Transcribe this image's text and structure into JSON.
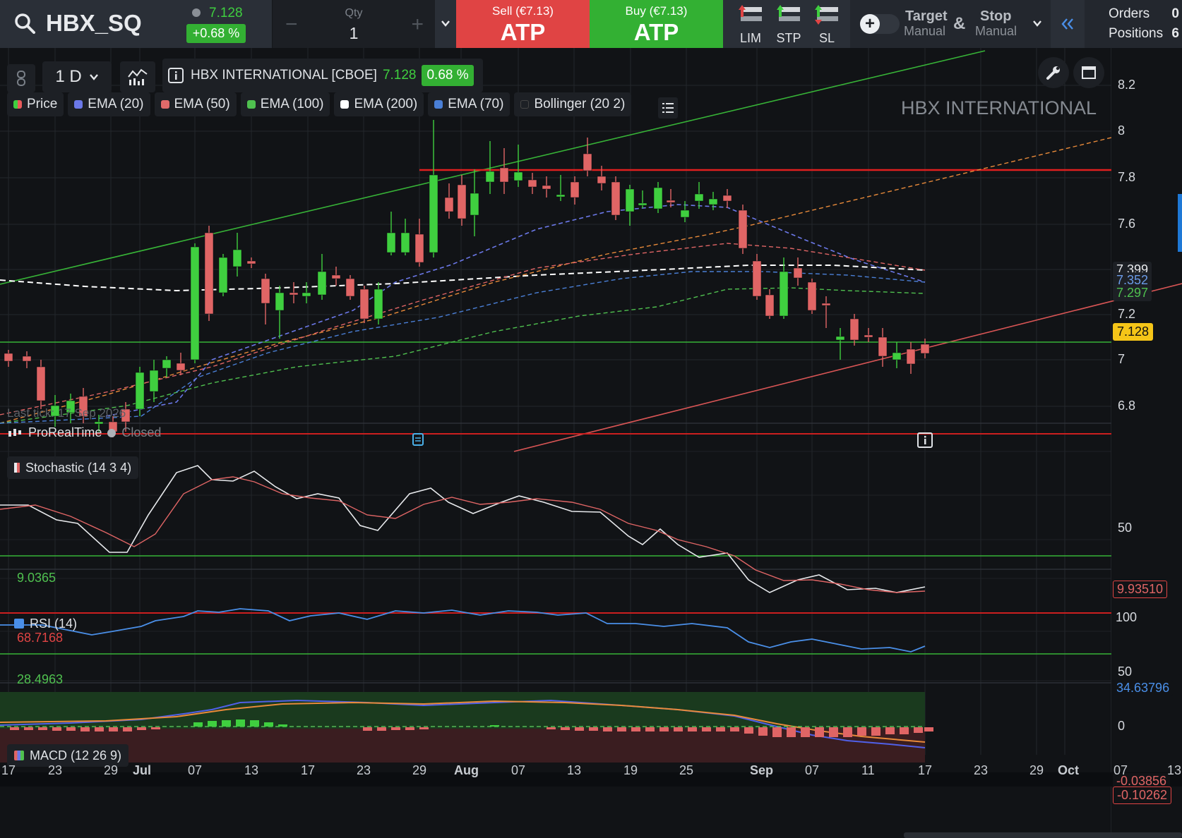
{
  "header": {
    "symbol": "HBX_SQ",
    "price": "7.128",
    "change_pct": "+0.68 %",
    "qty_label": "Qty",
    "qty_value": "1",
    "qty_minus": "−",
    "qty_plus": "+",
    "sell_label": "Sell (€7.13)",
    "sell_main": "ATP",
    "buy_label": "Buy (€7.13)",
    "buy_main": "ATP",
    "order_types": [
      "LIM",
      "STP",
      "SL"
    ],
    "target_label": "Target",
    "target_sub": "Manual",
    "amp": "&",
    "stop_label": "Stop",
    "stop_sub": "Manual",
    "orders_label": "Orders",
    "orders_count": "0",
    "positions_label": "Positions",
    "positions_count": "6"
  },
  "toolbar": {
    "timeframe": "1 D",
    "instrument_name": "HBX INTERNATIONAL [CBOE]",
    "instrument_price": "7.128",
    "instrument_change": "0.68 %"
  },
  "legend": [
    {
      "name": "Price",
      "color": "#e85a5a"
    },
    {
      "name": "EMA (20)",
      "color": "#6b78e8"
    },
    {
      "name": "EMA (50)",
      "color": "#e06a6a"
    },
    {
      "name": "EMA (100)",
      "color": "#4fc04f"
    },
    {
      "name": "EMA (200)",
      "color": "#ffffff"
    },
    {
      "name": "EMA (70)",
      "color": "#4a7fd6"
    },
    {
      "name": "Bollinger (20 2)",
      "color": "#1d2025"
    }
  ],
  "watermark": "HBX INTERNATIONAL",
  "overlay": {
    "last_tick": "Last tick: 17 Sep 2026",
    "provider": "ProRealTime",
    "status": "Closed"
  },
  "price_axis": {
    "ticks": [
      "8.2",
      "8",
      "7.8",
      "7.6",
      "7.2",
      "7",
      "6.8"
    ],
    "tags": [
      {
        "text": "7.399",
        "bg": "#1d2025",
        "color": "#e8eaed"
      },
      {
        "text": "7.352",
        "bg": "#1d2025",
        "color": "#6b9be8"
      },
      {
        "text": "7.297",
        "bg": "#1d2025",
        "color": "#4fc04f"
      },
      {
        "text": "7.128",
        "bg": "#f5c518",
        "color": "#111"
      }
    ]
  },
  "stochastic": {
    "label": "Stochastic (14 3 4)",
    "low_label": "9.0365",
    "value": "9.93510",
    "axis": "50"
  },
  "rsi": {
    "label": "RSI (14)",
    "high_label": "68.7168",
    "low_label": "28.4963",
    "value": "34.63796",
    "axis": [
      "100",
      "50",
      "0"
    ]
  },
  "macd": {
    "label": "MACD (12 26 9)",
    "values": [
      "-0.03856",
      "-0.10262"
    ]
  },
  "x_axis": [
    "17",
    "23",
    "29",
    "Jul",
    "07",
    "13",
    "17",
    "23",
    "29",
    "Aug",
    "07",
    "13",
    "19",
    "25",
    "Sep",
    "07",
    "11",
    "17",
    "23",
    "29",
    "Oct",
    "07",
    "13"
  ],
  "colors": {
    "up": "#3fcf3f",
    "down": "#e06565",
    "accent": "#e04444",
    "green": "#33b033"
  }
}
